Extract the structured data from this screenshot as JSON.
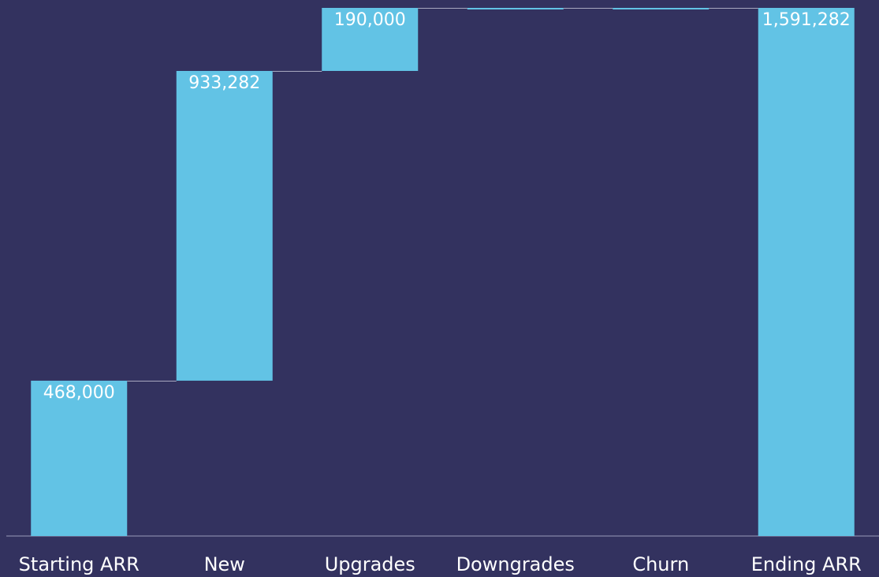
{
  "chart_data": {
    "type": "waterfall",
    "categories": [
      "Starting ARR",
      "New",
      "Upgrades",
      "Downgrades",
      "Churn",
      "Ending ARR"
    ],
    "values": [
      468000,
      933282,
      190000,
      0,
      0,
      1591282
    ],
    "value_labels": [
      "468,000",
      "933,282",
      "190,000",
      null,
      null,
      "1,591,282"
    ],
    "measure": [
      "absolute",
      "relative",
      "relative",
      "relative",
      "relative",
      "total"
    ],
    "color": "#62c3e5"
  }
}
